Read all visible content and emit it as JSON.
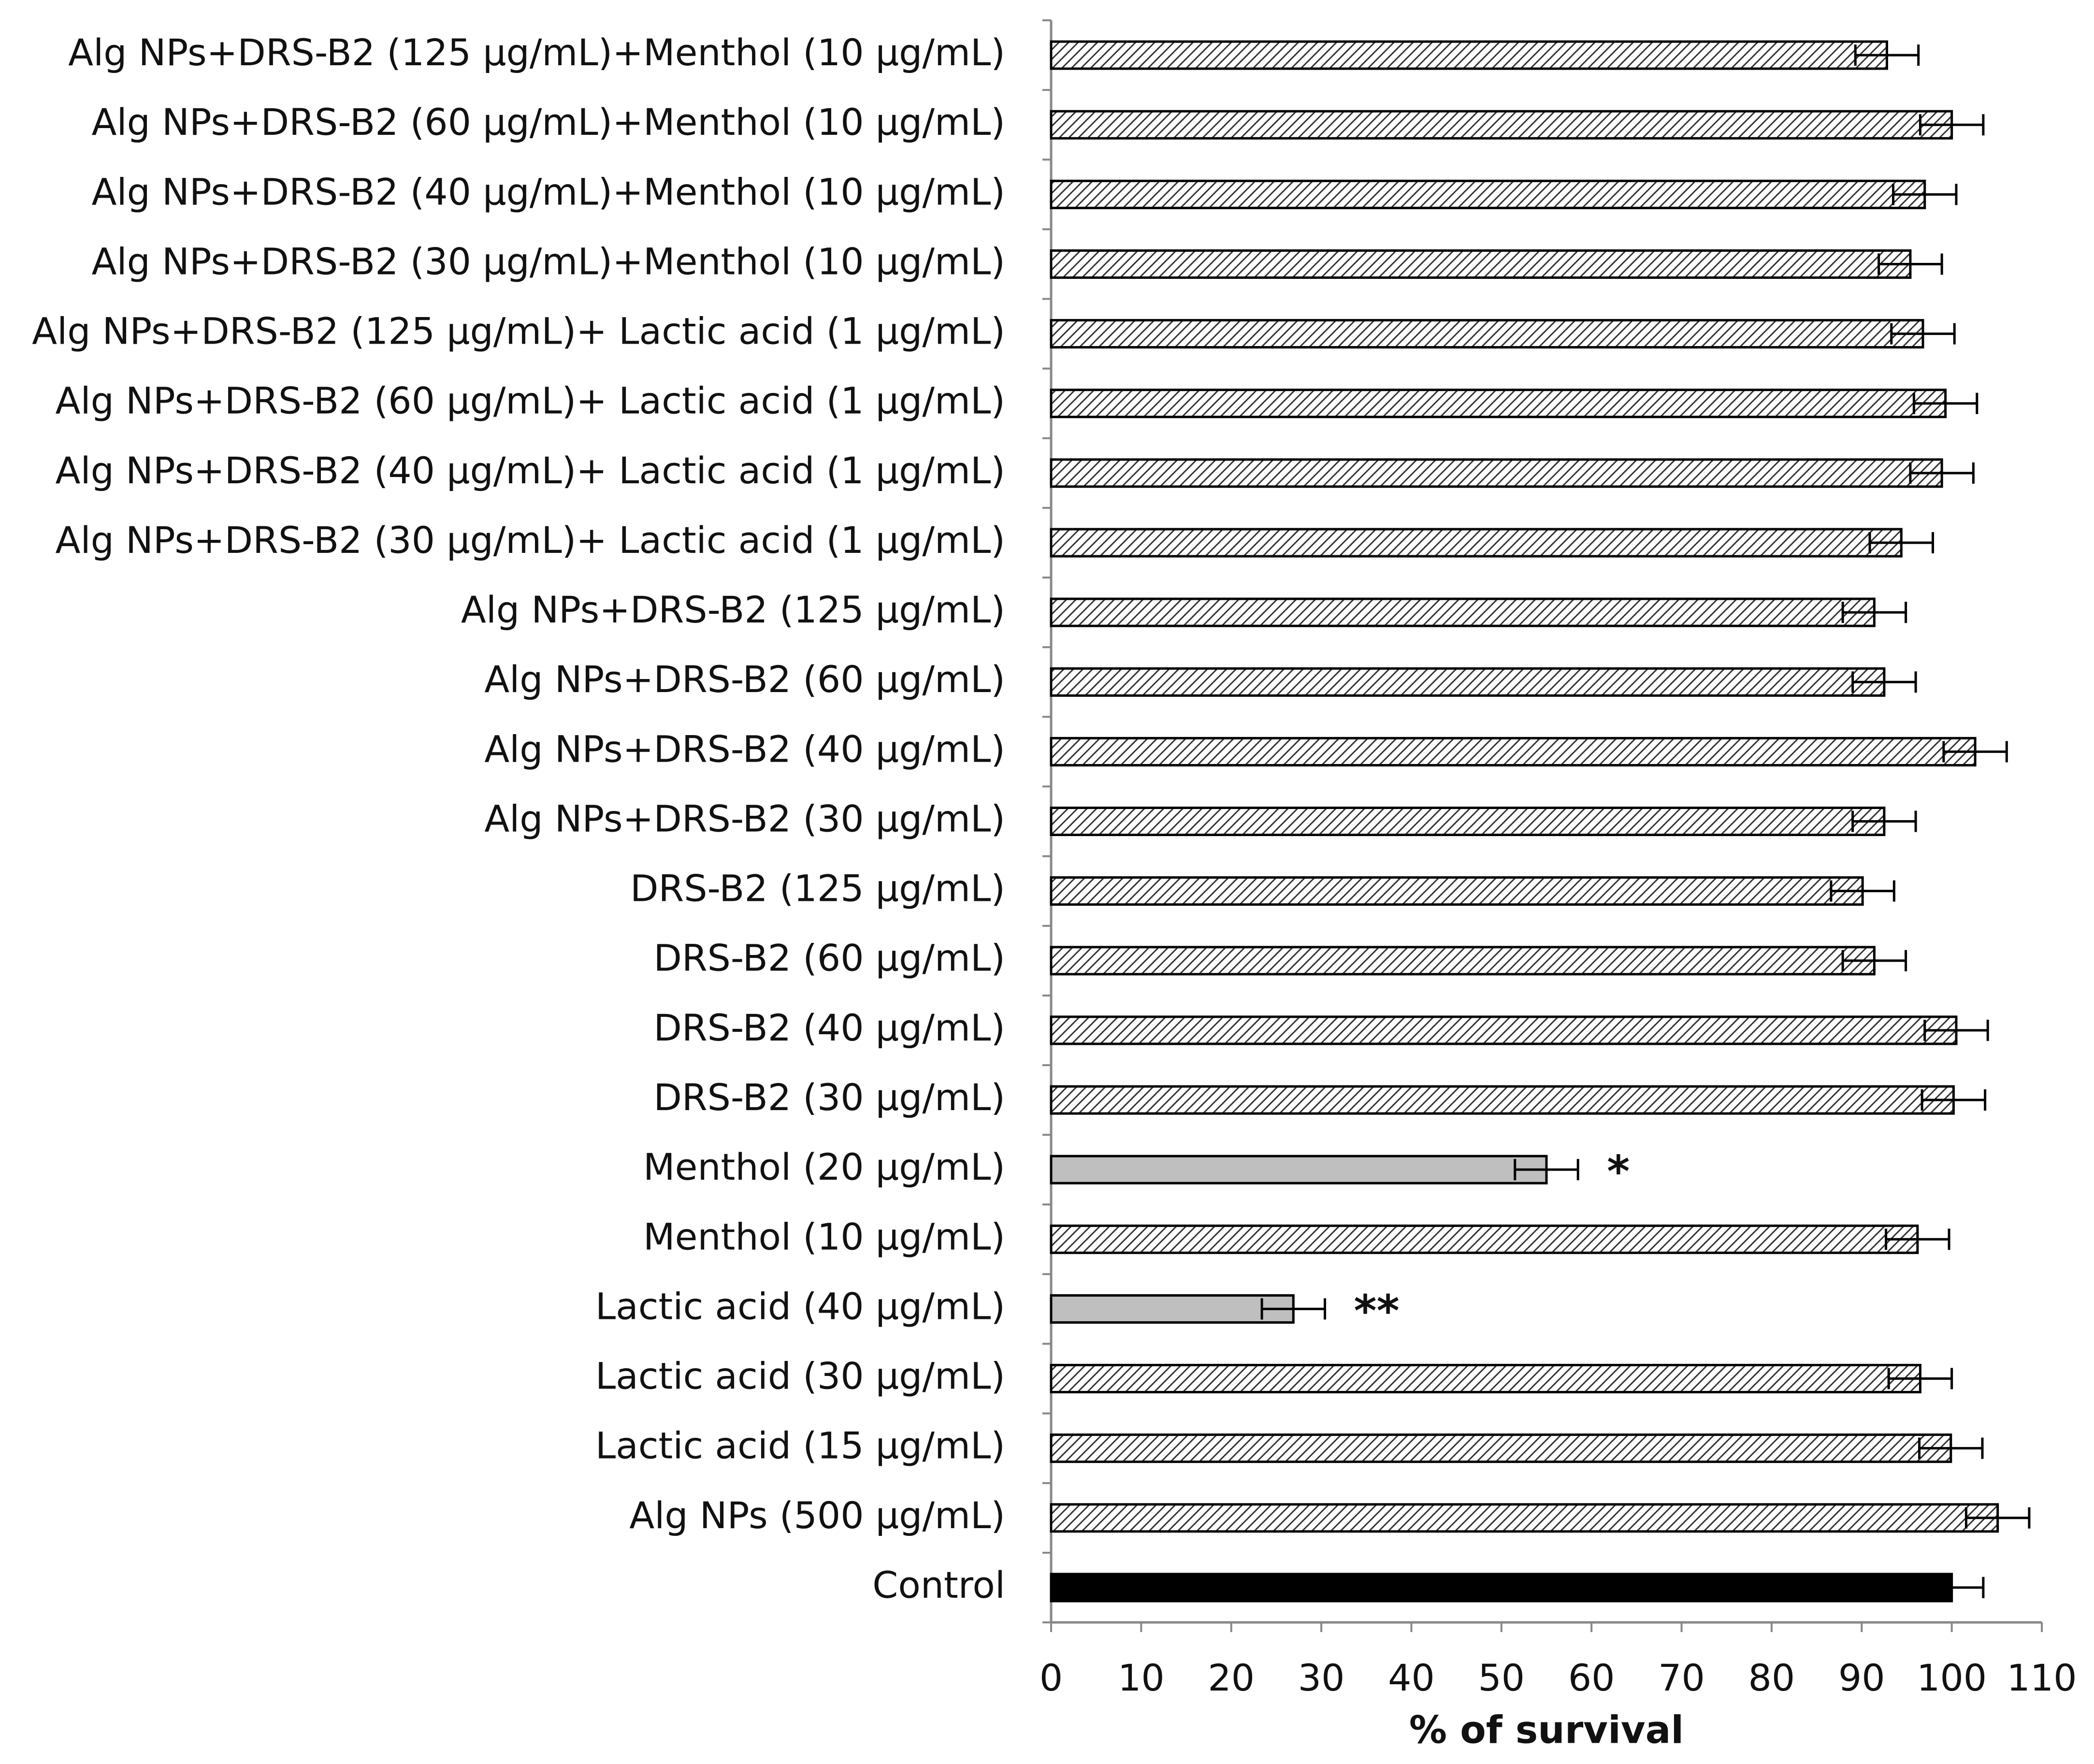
{
  "chart_data": {
    "type": "hbar",
    "x_label": "% of survival",
    "categories": [
      "Alg NPs+DRS-B2 (125 μg/mL)+Menthol (10 μg/mL)",
      "Alg NPs+DRS-B2 (60 μg/mL)+Menthol (10 μg/mL)",
      "Alg NPs+DRS-B2 (40 μg/mL)+Menthol (10 μg/mL)",
      "Alg NPs+DRS-B2 (30 μg/mL)+Menthol (10 μg/mL)",
      "Alg NPs+DRS-B2 (125 μg/mL)+ Lactic acid (1 μg/mL)",
      "Alg NPs+DRS-B2 (60 μg/mL)+ Lactic acid (1 μg/mL)",
      "Alg NPs+DRS-B2 (40 μg/mL)+ Lactic acid (1 μg/mL)",
      "Alg NPs+DRS-B2 (30 μg/mL)+ Lactic acid (1 μg/mL)",
      "Alg NPs+DRS-B2 (125 μg/mL)",
      "Alg NPs+DRS-B2 (60 μg/mL)",
      "Alg NPs+DRS-B2 (40 μg/mL)",
      "Alg NPs+DRS-B2 (30 μg/mL)",
      "DRS-B2 (125 μg/mL)",
      "DRS-B2 (60 μg/mL)",
      "DRS-B2 (40 μg/mL)",
      "DRS-B2 (30 μg/mL)",
      "Menthol (20 μg/mL)",
      "Menthol (10 μg/mL)",
      "Lactic acid (40 μg/mL)",
      "Lactic acid (30 μg/mL)",
      "Lactic acid (15 μg/mL)",
      "Alg NPs (500 μg/mL)",
      "Control"
    ],
    "values": [
      92.8,
      100,
      97,
      95.4,
      96.8,
      99.3,
      98.9,
      94.4,
      91.4,
      92.5,
      102.6,
      92.5,
      90.1,
      91.4,
      100.5,
      100.2,
      55,
      96.2,
      26.9,
      96.5,
      99.9,
      105.1,
      100
    ],
    "errors": [
      3.5,
      3.5,
      3.5,
      3.5,
      3.5,
      3.5,
      3.5,
      3.5,
      3.5,
      3.5,
      3.5,
      3.5,
      3.5,
      3.5,
      3.5,
      3.5,
      3.5,
      3.5,
      3.5,
      3.5,
      3.5,
      3.5,
      3.5
    ],
    "bar_styles": [
      "hatched",
      "hatched",
      "hatched",
      "hatched",
      "hatched",
      "hatched",
      "hatched",
      "hatched",
      "hatched",
      "hatched",
      "hatched",
      "hatched",
      "hatched",
      "hatched",
      "hatched",
      "hatched",
      "#bfbfbf",
      "hatched",
      "#bfbfbf",
      "hatched",
      "hatched",
      "hatched",
      "#000000"
    ],
    "significance": [
      null,
      null,
      null,
      null,
      null,
      null,
      null,
      null,
      null,
      null,
      null,
      null,
      null,
      null,
      null,
      null,
      "*",
      null,
      "**",
      null,
      null,
      null,
      null
    ],
    "xlim": [
      0,
      110
    ],
    "xticks": [
      0,
      10,
      20,
      30,
      40,
      50,
      60,
      70,
      80,
      90,
      100,
      110
    ]
  }
}
